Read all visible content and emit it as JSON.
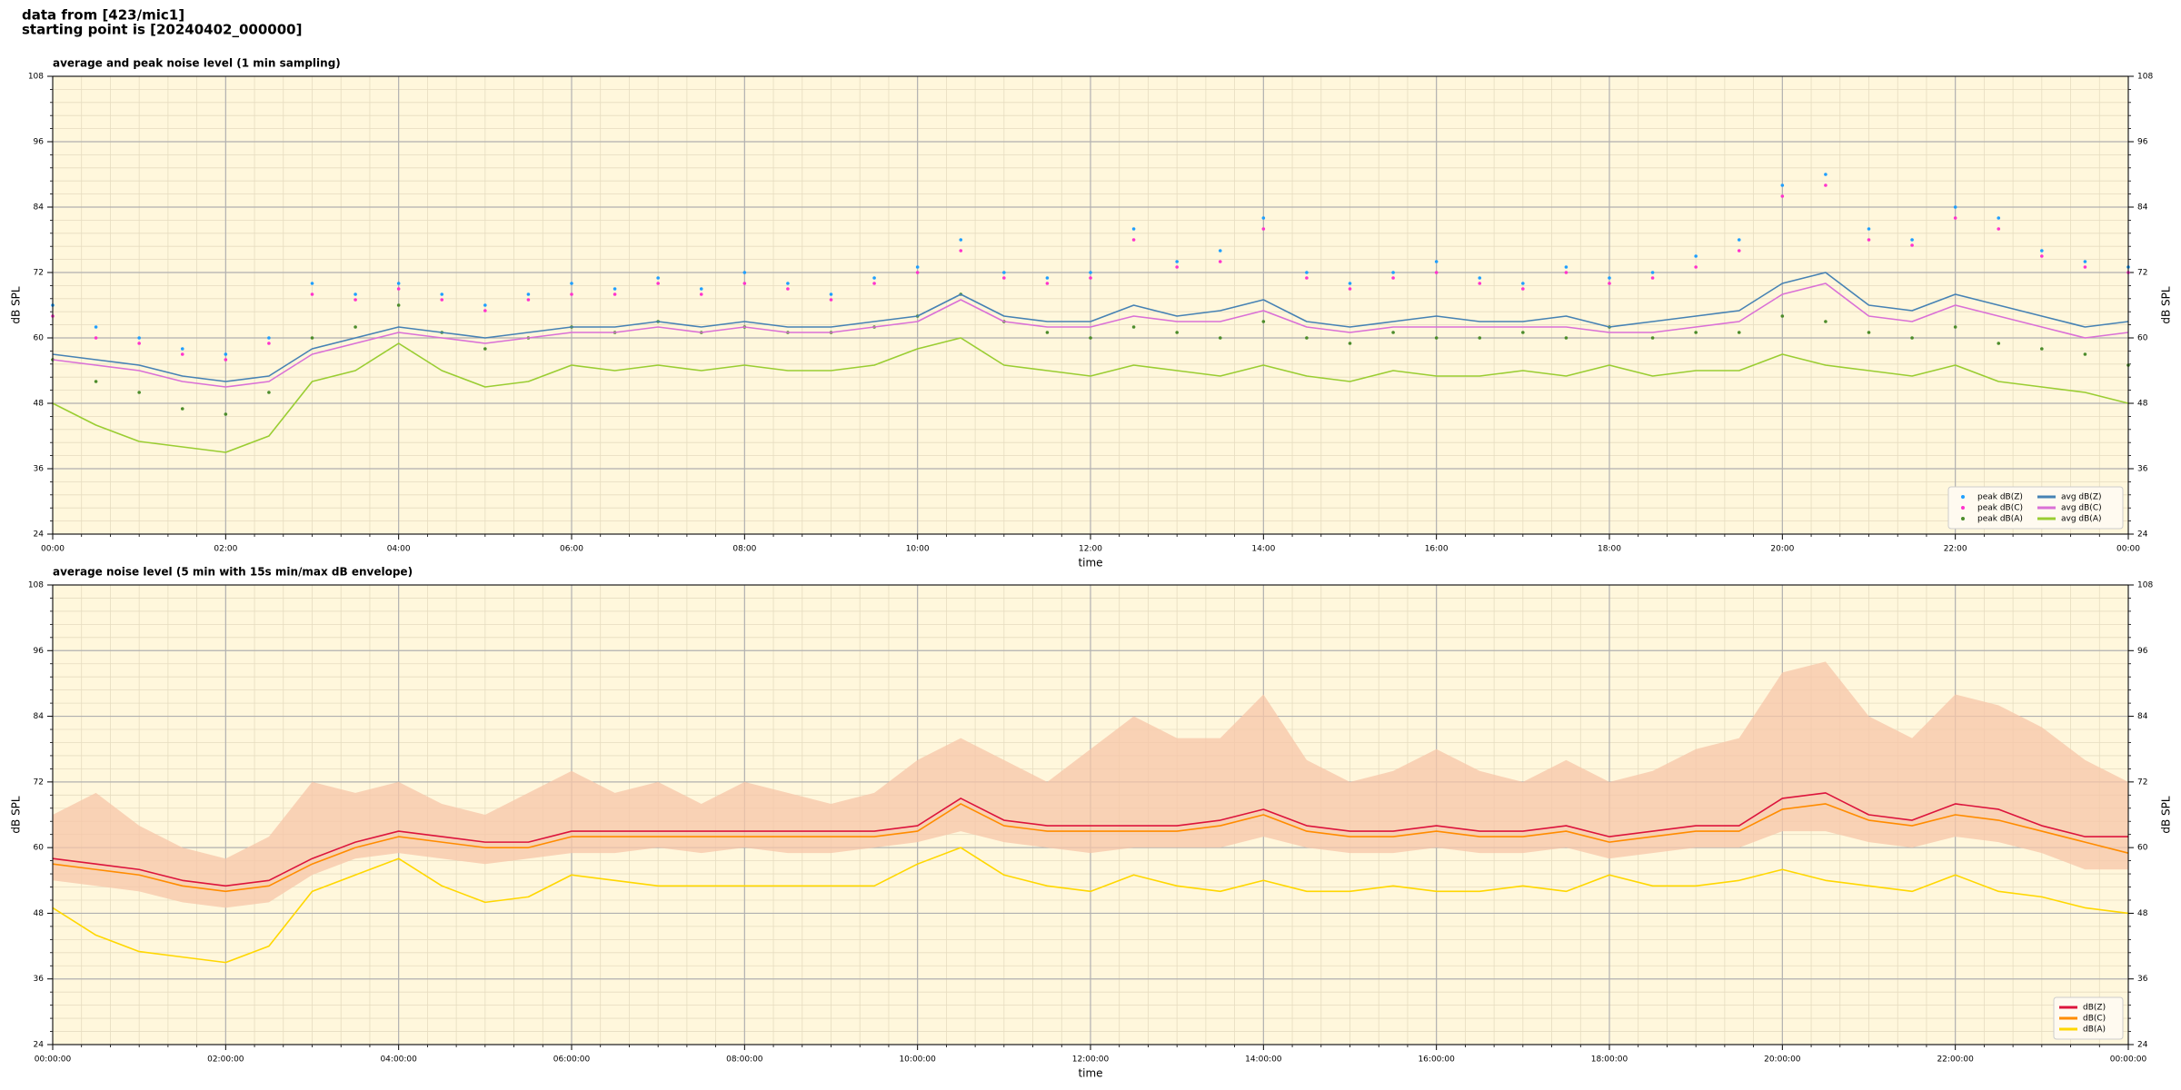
{
  "header": {
    "line1": "data from [423/mic1]",
    "line2": "starting point is [20240402_000000]"
  },
  "chart_data": [
    {
      "type": "line",
      "title": "average and peak noise level (1 min sampling)",
      "xlabel": "time",
      "ylabel": "dB SPL",
      "x": [
        0,
        0.5,
        1,
        1.5,
        2,
        2.5,
        3,
        3.5,
        4,
        4.5,
        5,
        5.5,
        6,
        6.5,
        7,
        7.5,
        8,
        8.5,
        9,
        9.5,
        10,
        10.5,
        11,
        11.5,
        12,
        12.5,
        13,
        13.5,
        14,
        14.5,
        15,
        15.5,
        16,
        16.5,
        17,
        17.5,
        18,
        18.5,
        19,
        19.5,
        20,
        20.5,
        21,
        21.5,
        22,
        22.5,
        23,
        23.5,
        24
      ],
      "series": [
        {
          "name": "peak dB(Z)",
          "color": "#1f9fff",
          "marker": "dot",
          "values": [
            66,
            62,
            60,
            58,
            57,
            60,
            70,
            68,
            70,
            68,
            66,
            68,
            70,
            69,
            71,
            69,
            72,
            70,
            68,
            71,
            73,
            78,
            72,
            71,
            72,
            80,
            74,
            76,
            82,
            72,
            70,
            72,
            74,
            71,
            70,
            73,
            71,
            72,
            75,
            78,
            88,
            90,
            80,
            78,
            84,
            82,
            76,
            74,
            73
          ]
        },
        {
          "name": "peak dB(C)",
          "color": "#ff33cc",
          "marker": "dot",
          "values": [
            64,
            60,
            59,
            57,
            56,
            59,
            68,
            67,
            69,
            67,
            65,
            67,
            68,
            68,
            70,
            68,
            70,
            69,
            67,
            70,
            72,
            76,
            71,
            70,
            71,
            78,
            73,
            74,
            80,
            71,
            69,
            71,
            72,
            70,
            69,
            72,
            70,
            71,
            73,
            76,
            86,
            88,
            78,
            77,
            82,
            80,
            75,
            73,
            72
          ]
        },
        {
          "name": "peak dB(A)",
          "color": "#4c8c2b",
          "marker": "dot",
          "values": [
            56,
            52,
            50,
            47,
            46,
            50,
            60,
            62,
            66,
            61,
            58,
            60,
            62,
            61,
            63,
            61,
            62,
            61,
            61,
            62,
            64,
            68,
            63,
            61,
            60,
            62,
            61,
            60,
            63,
            60,
            59,
            61,
            60,
            60,
            61,
            60,
            62,
            60,
            61,
            61,
            64,
            63,
            61,
            60,
            62,
            59,
            58,
            57,
            55
          ]
        },
        {
          "name": "avg dB(Z)",
          "color": "#4682b4",
          "marker": "line",
          "values": [
            57,
            56,
            55,
            53,
            52,
            53,
            58,
            60,
            62,
            61,
            60,
            61,
            62,
            62,
            63,
            62,
            63,
            62,
            62,
            63,
            64,
            68,
            64,
            63,
            63,
            66,
            64,
            65,
            67,
            63,
            62,
            63,
            64,
            63,
            63,
            64,
            62,
            63,
            64,
            65,
            70,
            72,
            66,
            65,
            68,
            66,
            64,
            62,
            63
          ]
        },
        {
          "name": "avg dB(C)",
          "color": "#da70d6",
          "marker": "line",
          "values": [
            56,
            55,
            54,
            52,
            51,
            52,
            57,
            59,
            61,
            60,
            59,
            60,
            61,
            61,
            62,
            61,
            62,
            61,
            61,
            62,
            63,
            67,
            63,
            62,
            62,
            64,
            63,
            63,
            65,
            62,
            61,
            62,
            62,
            62,
            62,
            62,
            61,
            61,
            62,
            63,
            68,
            70,
            64,
            63,
            66,
            64,
            62,
            60,
            61
          ]
        },
        {
          "name": "avg dB(A)",
          "color": "#9acd32",
          "marker": "line",
          "values": [
            48,
            44,
            41,
            40,
            39,
            42,
            52,
            54,
            59,
            54,
            51,
            52,
            55,
            54,
            55,
            54,
            55,
            54,
            54,
            55,
            58,
            60,
            55,
            54,
            53,
            55,
            54,
            53,
            55,
            53,
            52,
            54,
            53,
            53,
            54,
            53,
            55,
            53,
            54,
            54,
            57,
            55,
            54,
            53,
            55,
            52,
            51,
            50,
            48
          ]
        }
      ],
      "xlim": [
        0,
        24
      ],
      "xticks": [
        {
          "value": 0,
          "label": "00:00"
        },
        {
          "value": 2,
          "label": "02:00"
        },
        {
          "value": 4,
          "label": "04:00"
        },
        {
          "value": 6,
          "label": "06:00"
        },
        {
          "value": 8,
          "label": "08:00"
        },
        {
          "value": 10,
          "label": "10:00"
        },
        {
          "value": 12,
          "label": "12:00"
        },
        {
          "value": 14,
          "label": "14:00"
        },
        {
          "value": 16,
          "label": "16:00"
        },
        {
          "value": 18,
          "label": "18:00"
        },
        {
          "value": 20,
          "label": "20:00"
        },
        {
          "value": 22,
          "label": "22:00"
        },
        {
          "value": 24,
          "label": "00:00"
        }
      ],
      "ylim": [
        24,
        108
      ],
      "yticks": [
        24,
        36,
        48,
        60,
        72,
        84,
        96,
        108
      ],
      "grid": true,
      "background": "#fff7dc",
      "legend": {
        "loc": "lower right",
        "ncol": 2
      }
    },
    {
      "type": "line",
      "title": "average noise level (5 min with 15s min/max dB envelope)",
      "xlabel": "time",
      "ylabel": "dB SPL",
      "x": [
        0,
        0.5,
        1,
        1.5,
        2,
        2.5,
        3,
        3.5,
        4,
        4.5,
        5,
        5.5,
        6,
        6.5,
        7,
        7.5,
        8,
        8.5,
        9,
        9.5,
        10,
        10.5,
        11,
        11.5,
        12,
        12.5,
        13,
        13.5,
        14,
        14.5,
        15,
        15.5,
        16,
        16.5,
        17,
        17.5,
        18,
        18.5,
        19,
        19.5,
        20,
        20.5,
        21,
        21.5,
        22,
        22.5,
        23,
        23.5,
        24
      ],
      "envelope": {
        "color": "#f7c6a8",
        "max": [
          66,
          70,
          64,
          60,
          58,
          62,
          72,
          70,
          72,
          68,
          66,
          70,
          74,
          70,
          72,
          68,
          72,
          70,
          68,
          70,
          76,
          80,
          76,
          72,
          78,
          84,
          80,
          80,
          88,
          76,
          72,
          74,
          78,
          74,
          72,
          76,
          72,
          74,
          78,
          80,
          92,
          94,
          84,
          80,
          88,
          86,
          82,
          76,
          72
        ],
        "min": [
          54,
          53,
          52,
          50,
          49,
          50,
          55,
          58,
          59,
          58,
          57,
          58,
          59,
          59,
          60,
          59,
          60,
          59,
          59,
          60,
          61,
          63,
          61,
          60,
          59,
          60,
          60,
          60,
          62,
          60,
          59,
          59,
          60,
          59,
          59,
          60,
          58,
          59,
          60,
          60,
          63,
          63,
          61,
          60,
          62,
          61,
          59,
          56,
          56
        ]
      },
      "series": [
        {
          "name": "dB(Z)",
          "color": "#dc143c",
          "marker": "line",
          "values": [
            58,
            57,
            56,
            54,
            53,
            54,
            58,
            61,
            63,
            62,
            61,
            61,
            63,
            63,
            63,
            63,
            63,
            63,
            63,
            63,
            64,
            69,
            65,
            64,
            64,
            64,
            64,
            65,
            67,
            64,
            63,
            63,
            64,
            63,
            63,
            64,
            62,
            63,
            64,
            64,
            69,
            70,
            66,
            65,
            68,
            67,
            64,
            62,
            62
          ]
        },
        {
          "name": "dB(C)",
          "color": "#ff8c00",
          "marker": "line",
          "values": [
            57,
            56,
            55,
            53,
            52,
            53,
            57,
            60,
            62,
            61,
            60,
            60,
            62,
            62,
            62,
            62,
            62,
            62,
            62,
            62,
            63,
            68,
            64,
            63,
            63,
            63,
            63,
            64,
            66,
            63,
            62,
            62,
            63,
            62,
            62,
            63,
            61,
            62,
            63,
            63,
            67,
            68,
            65,
            64,
            66,
            65,
            63,
            61,
            59
          ]
        },
        {
          "name": "dB(A)",
          "color": "#ffd700",
          "marker": "line",
          "values": [
            49,
            44,
            41,
            40,
            39,
            42,
            52,
            55,
            58,
            53,
            50,
            51,
            55,
            54,
            53,
            53,
            53,
            53,
            53,
            53,
            57,
            60,
            55,
            53,
            52,
            55,
            53,
            52,
            54,
            52,
            52,
            53,
            52,
            52,
            53,
            52,
            55,
            53,
            53,
            54,
            56,
            54,
            53,
            52,
            55,
            52,
            51,
            49,
            48
          ]
        }
      ],
      "xlim": [
        0,
        24
      ],
      "xticks": [
        {
          "value": 0,
          "label": "00:00:00"
        },
        {
          "value": 2,
          "label": "02:00:00"
        },
        {
          "value": 4,
          "label": "04:00:00"
        },
        {
          "value": 6,
          "label": "06:00:00"
        },
        {
          "value": 8,
          "label": "08:00:00"
        },
        {
          "value": 10,
          "label": "10:00:00"
        },
        {
          "value": 12,
          "label": "12:00:00"
        },
        {
          "value": 14,
          "label": "14:00:00"
        },
        {
          "value": 16,
          "label": "16:00:00"
        },
        {
          "value": 18,
          "label": "18:00:00"
        },
        {
          "value": 20,
          "label": "20:00:00"
        },
        {
          "value": 22,
          "label": "22:00:00"
        },
        {
          "value": 24,
          "label": "00:00:00"
        }
      ],
      "ylim": [
        24,
        108
      ],
      "yticks": [
        24,
        36,
        48,
        60,
        72,
        84,
        96,
        108
      ],
      "grid": true,
      "background": "#fff7dc",
      "legend": {
        "loc": "lower right",
        "ncol": 1
      }
    }
  ]
}
